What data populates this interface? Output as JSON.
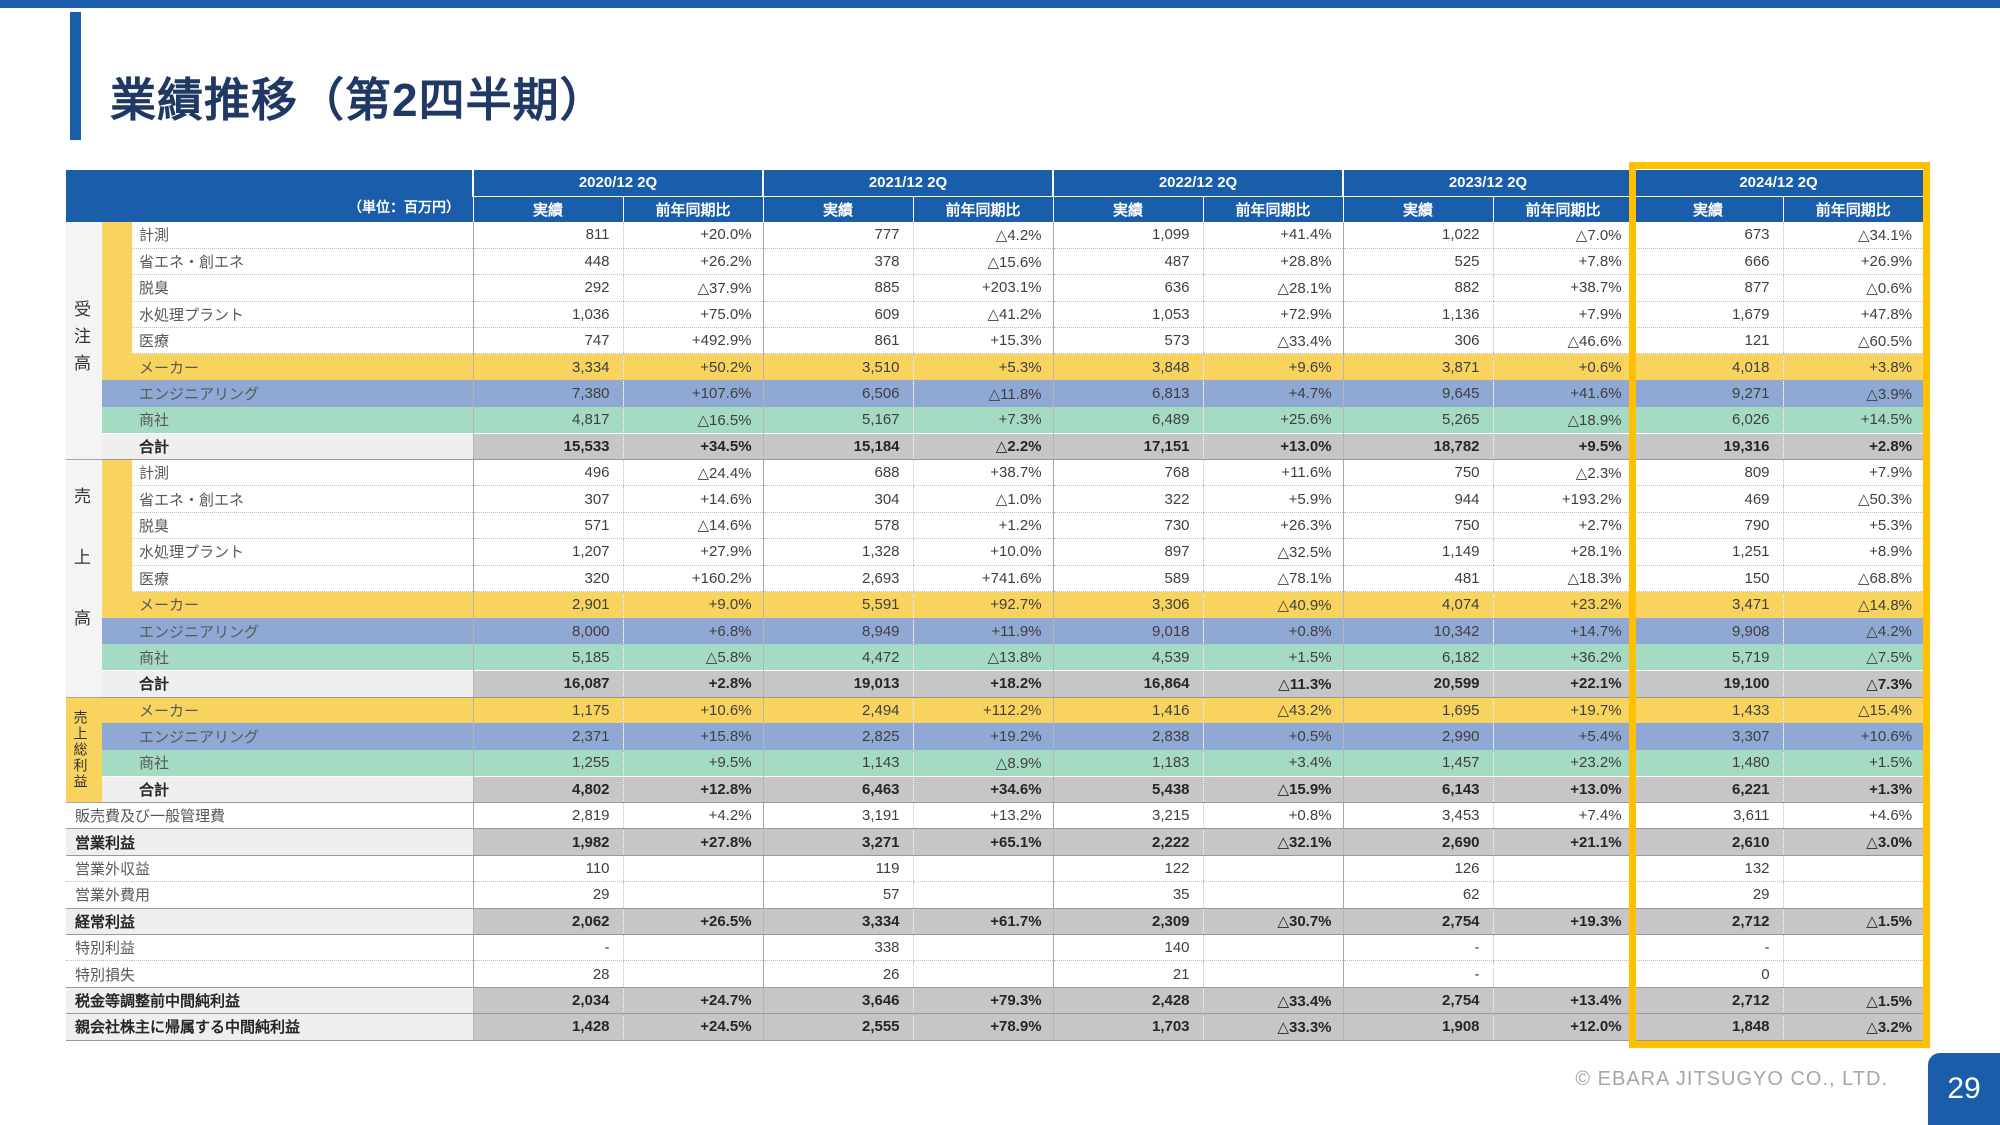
{
  "page": {
    "title": "業績推移（第2四半期）",
    "copyright": "© EBARA JITSUGYO CO., LTD.",
    "page_number": "29"
  },
  "colors": {
    "header_blue": "#1A5DAA",
    "title_navy": "#1F3864",
    "maker_yellow": "#F8D35D",
    "engineering_blue": "#90A8D4",
    "trading_green": "#A5DAC3",
    "total_gray": "#C6C6C6",
    "highlight_gold": "#FFC000"
  },
  "table": {
    "unit_label": "（単位：百万円）",
    "year_groups": [
      "2020/12 2Q",
      "2021/12 2Q",
      "2022/12 2Q",
      "2023/12 2Q",
      "2024/12 2Q"
    ],
    "sub_headers": [
      "実績",
      "前年同期比"
    ],
    "highlighted_year": "2024/12 2Q",
    "rows": [
      {
        "group": "受注高",
        "group_span": 9,
        "grouped": true,
        "style": "sub",
        "label": "計測",
        "cells": [
          "811",
          "+20.0%",
          "777",
          "△4.2%",
          "1,099",
          "+41.4%",
          "1,022",
          "△7.0%",
          "673",
          "△34.1%"
        ]
      },
      {
        "grouped": true,
        "style": "sub",
        "label": "省エネ・創エネ",
        "cells": [
          "448",
          "+26.2%",
          "378",
          "△15.6%",
          "487",
          "+28.8%",
          "525",
          "+7.8%",
          "666",
          "+26.9%"
        ]
      },
      {
        "grouped": true,
        "style": "sub",
        "label": "脱臭",
        "cells": [
          "292",
          "△37.9%",
          "885",
          "+203.1%",
          "636",
          "△28.1%",
          "882",
          "+38.7%",
          "877",
          "△0.6%"
        ]
      },
      {
        "grouped": true,
        "style": "sub",
        "label": "水処理プラント",
        "cells": [
          "1,036",
          "+75.0%",
          "609",
          "△41.2%",
          "1,053",
          "+72.9%",
          "1,136",
          "+7.9%",
          "1,679",
          "+47.8%"
        ]
      },
      {
        "grouped": true,
        "style": "sub",
        "label": "医療",
        "cells": [
          "747",
          "+492.9%",
          "861",
          "+15.3%",
          "573",
          "△33.4%",
          "306",
          "△46.6%",
          "121",
          "△60.5%"
        ]
      },
      {
        "grouped": true,
        "style": "maker",
        "label": "メーカー",
        "cells": [
          "3,334",
          "+50.2%",
          "3,510",
          "+5.3%",
          "3,848",
          "+9.6%",
          "3,871",
          "+0.6%",
          "4,018",
          "+3.8%"
        ]
      },
      {
        "grouped": true,
        "style": "eng",
        "label": "エンジニアリング",
        "cells": [
          "7,380",
          "+107.6%",
          "6,506",
          "△11.8%",
          "6,813",
          "+4.7%",
          "9,645",
          "+41.6%",
          "9,271",
          "△3.9%"
        ]
      },
      {
        "grouped": true,
        "style": "trade",
        "label": "商社",
        "cells": [
          "4,817",
          "△16.5%",
          "5,167",
          "+7.3%",
          "6,489",
          "+25.6%",
          "5,265",
          "△18.9%",
          "6,026",
          "+14.5%"
        ]
      },
      {
        "grouped": true,
        "style": "total",
        "label": "合計",
        "cells": [
          "15,533",
          "+34.5%",
          "15,184",
          "△2.2%",
          "17,151",
          "+13.0%",
          "18,782",
          "+9.5%",
          "19,316",
          "+2.8%"
        ]
      },
      {
        "group": "売上高",
        "group_span": 9,
        "grouped": true,
        "style": "sub",
        "label": "計測",
        "cells": [
          "496",
          "△24.4%",
          "688",
          "+38.7%",
          "768",
          "+11.6%",
          "750",
          "△2.3%",
          "809",
          "+7.9%"
        ]
      },
      {
        "grouped": true,
        "style": "sub",
        "label": "省エネ・創エネ",
        "cells": [
          "307",
          "+14.6%",
          "304",
          "△1.0%",
          "322",
          "+5.9%",
          "944",
          "+193.2%",
          "469",
          "△50.3%"
        ]
      },
      {
        "grouped": true,
        "style": "sub",
        "label": "脱臭",
        "cells": [
          "571",
          "△14.6%",
          "578",
          "+1.2%",
          "730",
          "+26.3%",
          "750",
          "+2.7%",
          "790",
          "+5.3%"
        ]
      },
      {
        "grouped": true,
        "style": "sub",
        "label": "水処理プラント",
        "cells": [
          "1,207",
          "+27.9%",
          "1,328",
          "+10.0%",
          "897",
          "△32.5%",
          "1,149",
          "+28.1%",
          "1,251",
          "+8.9%"
        ]
      },
      {
        "grouped": true,
        "style": "sub",
        "label": "医療",
        "cells": [
          "320",
          "+160.2%",
          "2,693",
          "+741.6%",
          "589",
          "△78.1%",
          "481",
          "△18.3%",
          "150",
          "△68.8%"
        ]
      },
      {
        "grouped": true,
        "style": "maker",
        "label": "メーカー",
        "cells": [
          "2,901",
          "+9.0%",
          "5,591",
          "+92.7%",
          "3,306",
          "△40.9%",
          "4,074",
          "+23.2%",
          "3,471",
          "△14.8%"
        ]
      },
      {
        "grouped": true,
        "style": "eng",
        "label": "エンジニアリング",
        "cells": [
          "8,000",
          "+6.8%",
          "8,949",
          "+11.9%",
          "9,018",
          "+0.8%",
          "10,342",
          "+14.7%",
          "9,908",
          "△4.2%"
        ]
      },
      {
        "grouped": true,
        "style": "trade",
        "label": "商社",
        "cells": [
          "5,185",
          "△5.8%",
          "4,472",
          "△13.8%",
          "4,539",
          "+1.5%",
          "6,182",
          "+36.2%",
          "5,719",
          "△7.5%"
        ]
      },
      {
        "grouped": true,
        "style": "total",
        "label": "合計",
        "cells": [
          "16,087",
          "+2.8%",
          "19,013",
          "+18.2%",
          "16,864",
          "△11.3%",
          "20,599",
          "+22.1%",
          "19,100",
          "△7.3%"
        ]
      },
      {
        "group": "売上総利益",
        "group_span": 4,
        "grouped": true,
        "style": "maker",
        "label": "メーカー",
        "cells": [
          "1,175",
          "+10.6%",
          "2,494",
          "+112.2%",
          "1,416",
          "△43.2%",
          "1,695",
          "+19.7%",
          "1,433",
          "△15.4%"
        ]
      },
      {
        "grouped": true,
        "style": "eng",
        "label": "エンジニアリング",
        "cells": [
          "2,371",
          "+15.8%",
          "2,825",
          "+19.2%",
          "2,838",
          "+0.5%",
          "2,990",
          "+5.4%",
          "3,307",
          "+10.6%"
        ]
      },
      {
        "grouped": true,
        "style": "trade",
        "label": "商社",
        "cells": [
          "1,255",
          "+9.5%",
          "1,143",
          "△8.9%",
          "1,183",
          "+3.4%",
          "1,457",
          "+23.2%",
          "1,480",
          "+1.5%"
        ]
      },
      {
        "grouped": true,
        "style": "total",
        "label": "合計",
        "cells": [
          "4,802",
          "+12.8%",
          "6,463",
          "+34.6%",
          "5,438",
          "△15.9%",
          "6,143",
          "+13.0%",
          "6,221",
          "+1.3%"
        ]
      },
      {
        "grouped": false,
        "style": "plain",
        "label": "販売費及び一般管理費",
        "cells": [
          "2,819",
          "+4.2%",
          "3,191",
          "+13.2%",
          "3,215",
          "+0.8%",
          "3,453",
          "+7.4%",
          "3,611",
          "+4.6%"
        ]
      },
      {
        "grouped": false,
        "style": "profit",
        "label": "営業利益",
        "cells": [
          "1,982",
          "+27.8%",
          "3,271",
          "+65.1%",
          "2,222",
          "△32.1%",
          "2,690",
          "+21.1%",
          "2,610",
          "△3.0%"
        ]
      },
      {
        "grouped": false,
        "style": "plain",
        "label": "営業外収益",
        "cells": [
          "110",
          "",
          "119",
          "",
          "122",
          "",
          "126",
          "",
          "132",
          ""
        ]
      },
      {
        "grouped": false,
        "style": "plain",
        "label": "営業外費用",
        "cells": [
          "29",
          "",
          "57",
          "",
          "35",
          "",
          "62",
          "",
          "29",
          ""
        ]
      },
      {
        "grouped": false,
        "style": "profit",
        "label": "経常利益",
        "cells": [
          "2,062",
          "+26.5%",
          "3,334",
          "+61.7%",
          "2,309",
          "△30.7%",
          "2,754",
          "+19.3%",
          "2,712",
          "△1.5%"
        ]
      },
      {
        "grouped": false,
        "style": "plain",
        "label": "特別利益",
        "cells": [
          "-",
          "",
          "338",
          "",
          "140",
          "",
          "-",
          "",
          "-",
          ""
        ]
      },
      {
        "grouped": false,
        "style": "plain",
        "label": "特別損失",
        "cells": [
          "28",
          "",
          "26",
          "",
          "21",
          "",
          "-",
          "",
          "0",
          ""
        ]
      },
      {
        "grouped": false,
        "style": "profit",
        "label": "税金等調整前中間純利益",
        "cells": [
          "2,034",
          "+24.7%",
          "3,646",
          "+79.3%",
          "2,428",
          "△33.4%",
          "2,754",
          "+13.4%",
          "2,712",
          "△1.5%"
        ]
      },
      {
        "grouped": false,
        "style": "profit",
        "label": "親会社株主に帰属する中間純利益",
        "cells": [
          "1,428",
          "+24.5%",
          "2,555",
          "+78.9%",
          "1,703",
          "△33.3%",
          "1,908",
          "+12.0%",
          "1,848",
          "△3.2%"
        ]
      }
    ]
  }
}
